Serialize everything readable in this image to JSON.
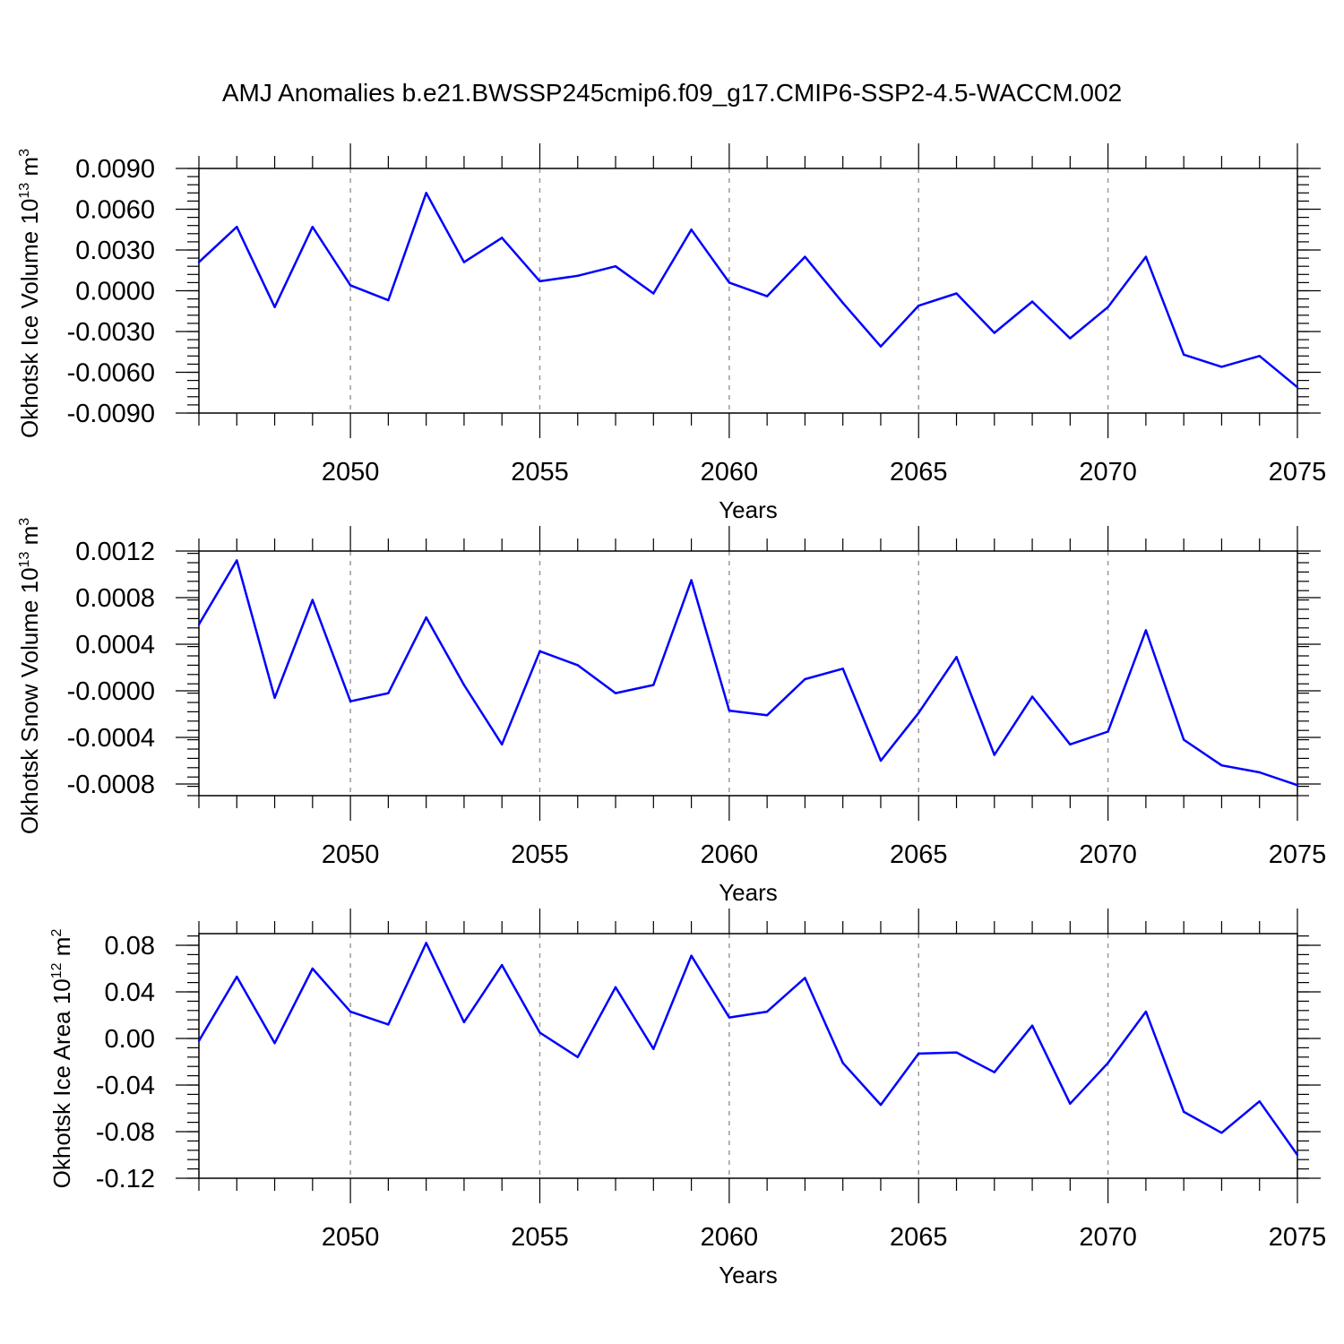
{
  "figure": {
    "title": "AMJ Anomalies b.e21.BWSSP245cmip6.f09_g17.CMIP6-SSP2-4.5-WACCM.002"
  },
  "chart_data": [
    {
      "type": "line",
      "xlabel": "Years",
      "ylabel": "Okhotsk Ice Volume 10",
      "ylabel_sup": "13",
      "ylabel_unit": " m",
      "ylabel_unit_sup": "3",
      "xlim": [
        2046,
        2075
      ],
      "ylim": [
        -0.009,
        0.009
      ],
      "yticks": [
        -0.009,
        -0.006,
        -0.003,
        0.0,
        0.003,
        0.006,
        0.009
      ],
      "ytick_labels": [
        "-0.0090",
        "-0.0060",
        "-0.0030",
        "0.0000",
        "0.0030",
        "0.0060",
        "0.0090"
      ],
      "xticks": [
        2050,
        2055,
        2060,
        2065,
        2070,
        2075
      ],
      "xtick_labels": [
        "2050",
        "2055",
        "2060",
        "2065",
        "2070",
        "2075"
      ],
      "grid": "vertical dashed at major x ticks",
      "line_color": "#0000ff",
      "x": [
        2046,
        2047,
        2048,
        2049,
        2050,
        2051,
        2052,
        2053,
        2054,
        2055,
        2056,
        2057,
        2058,
        2059,
        2060,
        2061,
        2062,
        2063,
        2064,
        2065,
        2066,
        2067,
        2068,
        2069,
        2070,
        2071,
        2072,
        2073,
        2074,
        2075
      ],
      "values": [
        0.0021,
        0.0047,
        -0.0012,
        0.0047,
        0.0004,
        -0.0007,
        0.0072,
        0.0021,
        0.0039,
        0.0007,
        0.0011,
        0.0018,
        -0.0002,
        0.0045,
        0.0006,
        -0.0004,
        0.0025,
        -0.0009,
        -0.0041,
        -0.0011,
        -0.0002,
        -0.0031,
        -0.0008,
        -0.0035,
        -0.0012,
        0.0025,
        -0.0047,
        -0.0056,
        -0.0048,
        -0.0071
      ]
    },
    {
      "type": "line",
      "xlabel": "Years",
      "ylabel": "Okhotsk Snow Volume 10",
      "ylabel_sup": "13",
      "ylabel_unit": " m",
      "ylabel_unit_sup": "3",
      "xlim": [
        2046,
        2075
      ],
      "ylim": [
        -0.0009,
        0.0012
      ],
      "yticks": [
        -0.0008,
        -0.0004,
        0.0,
        0.0004,
        0.0008,
        0.0012
      ],
      "ytick_labels": [
        "-0.0008",
        "-0.0004",
        "-0.0000",
        "0.0004",
        "0.0008",
        "0.0012"
      ],
      "xticks": [
        2050,
        2055,
        2060,
        2065,
        2070,
        2075
      ],
      "xtick_labels": [
        "2050",
        "2055",
        "2060",
        "2065",
        "2070",
        "2075"
      ],
      "grid": "vertical dashed at major x ticks",
      "line_color": "#0000ff",
      "x": [
        2046,
        2047,
        2048,
        2049,
        2050,
        2051,
        2052,
        2053,
        2054,
        2055,
        2056,
        2057,
        2058,
        2059,
        2060,
        2061,
        2062,
        2063,
        2064,
        2065,
        2066,
        2067,
        2068,
        2069,
        2070,
        2071,
        2072,
        2073,
        2074,
        2075
      ],
      "values": [
        0.00057,
        0.00112,
        -6e-05,
        0.00078,
        -9e-05,
        -2e-05,
        0.00063,
        5e-05,
        -0.00046,
        0.00034,
        0.00022,
        -2e-05,
        5e-05,
        0.00095,
        -0.00017,
        -0.00021,
        0.0001,
        0.00019,
        -0.0006,
        -0.00019,
        0.00029,
        -0.00055,
        -5e-05,
        -0.00046,
        -0.00035,
        0.00052,
        -0.00042,
        -0.00064,
        -0.0007,
        -0.00081
      ]
    },
    {
      "type": "line",
      "xlabel": "Years",
      "ylabel": "Okhotsk Ice Area 10",
      "ylabel_sup": "12",
      "ylabel_unit": " m",
      "ylabel_unit_sup": "2",
      "xlim": [
        2046,
        2075
      ],
      "ylim": [
        -0.12,
        0.09
      ],
      "yticks": [
        -0.12,
        -0.08,
        -0.04,
        0.0,
        0.04,
        0.08
      ],
      "ytick_labels": [
        "-0.12",
        "-0.08",
        "-0.04",
        "0.00",
        "0.04",
        "0.08"
      ],
      "xticks": [
        2050,
        2055,
        2060,
        2065,
        2070,
        2075
      ],
      "xtick_labels": [
        "2050",
        "2055",
        "2060",
        "2065",
        "2070",
        "2075"
      ],
      "grid": "vertical dashed at major x ticks",
      "line_color": "#0000ff",
      "x": [
        2046,
        2047,
        2048,
        2049,
        2050,
        2051,
        2052,
        2053,
        2054,
        2055,
        2056,
        2057,
        2058,
        2059,
        2060,
        2061,
        2062,
        2063,
        2064,
        2065,
        2066,
        2067,
        2068,
        2069,
        2070,
        2071,
        2072,
        2073,
        2074,
        2075
      ],
      "values": [
        -0.002,
        0.053,
        -0.004,
        0.06,
        0.023,
        0.012,
        0.082,
        0.014,
        0.063,
        0.005,
        -0.016,
        0.044,
        -0.009,
        0.071,
        0.018,
        0.023,
        0.052,
        -0.021,
        -0.057,
        -0.013,
        -0.012,
        -0.029,
        0.011,
        -0.056,
        -0.021,
        0.023,
        -0.063,
        -0.081,
        -0.054,
        -0.1
      ]
    }
  ]
}
